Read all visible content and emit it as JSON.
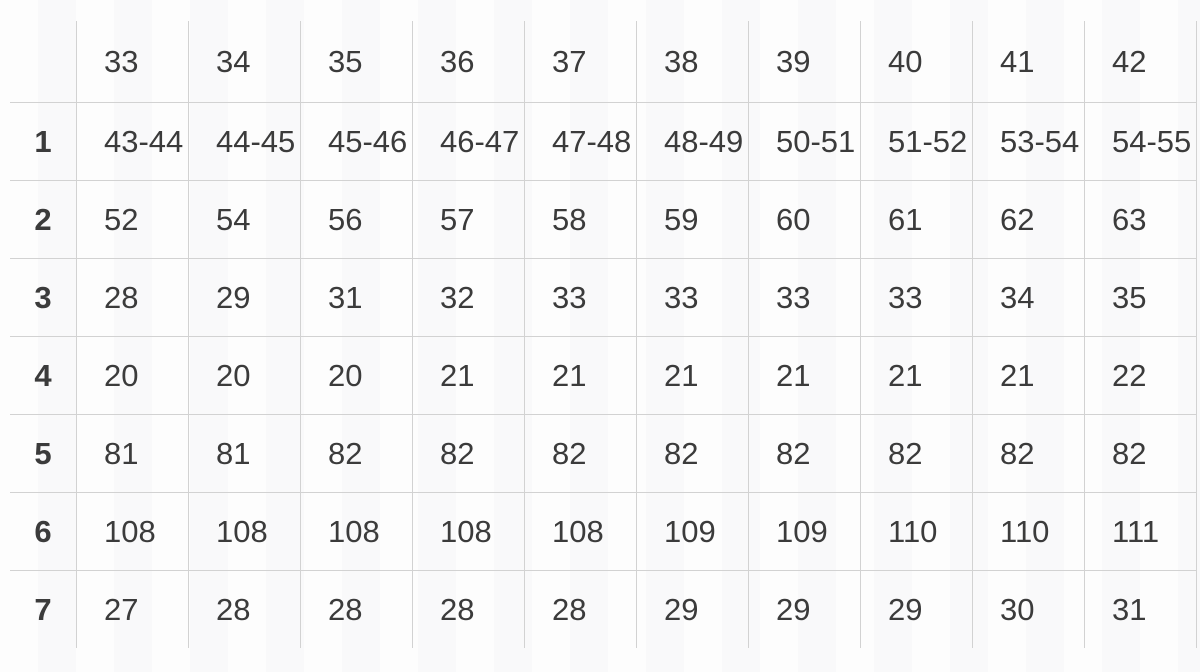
{
  "table": {
    "description": "size-chart-grid",
    "corner_label": "",
    "columns": [
      "33",
      "34",
      "35",
      "36",
      "37",
      "38",
      "39",
      "40",
      "41",
      "42"
    ],
    "rows": [
      {
        "label": "1",
        "values": [
          "43-44",
          "44-45",
          "45-46",
          "46-47",
          "47-48",
          "48-49",
          "50-51",
          "51-52",
          "53-54",
          "54-55"
        ]
      },
      {
        "label": "2",
        "values": [
          "52",
          "54",
          "56",
          "57",
          "58",
          "59",
          "60",
          "61",
          "62",
          "63"
        ]
      },
      {
        "label": "3",
        "values": [
          "28",
          "29",
          "31",
          "32",
          "33",
          "33",
          "33",
          "33",
          "34",
          "35"
        ]
      },
      {
        "label": "4",
        "values": [
          "20",
          "20",
          "20",
          "21",
          "21",
          "21",
          "21",
          "21",
          "21",
          "22"
        ]
      },
      {
        "label": "5",
        "values": [
          "81",
          "81",
          "82",
          "82",
          "82",
          "82",
          "82",
          "82",
          "82",
          "82"
        ]
      },
      {
        "label": "6",
        "values": [
          "108",
          "108",
          "108",
          "108",
          "108",
          "109",
          "109",
          "110",
          "110",
          "111"
        ]
      },
      {
        "label": "7",
        "values": [
          "27",
          "28",
          "28",
          "28",
          "28",
          "29",
          "29",
          "29",
          "30",
          "31"
        ]
      }
    ],
    "colors": {
      "border": "#d2d2d2",
      "text": "#3b3b3b",
      "background": "#fcfcfc"
    }
  }
}
